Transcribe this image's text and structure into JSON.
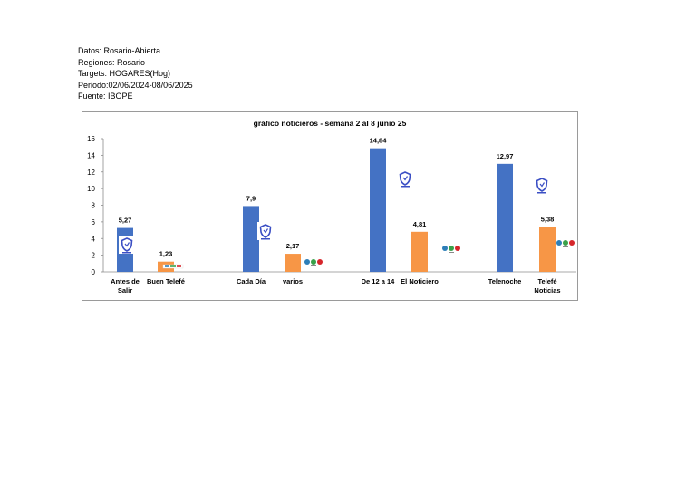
{
  "header": {
    "lines": [
      "Datos: Rosario-Abierta",
      "Regiones: Rosario",
      "Targets: HOGARES(Hog)",
      "Periodo:02/06/2024-08/06/2025",
      "Fuente: IBOPE"
    ]
  },
  "colors": {
    "blue": "#4472C4",
    "orange": "#F79646"
  },
  "chart_data": {
    "type": "bar",
    "title": "gráfico noticieros - semana 2 al 8 junio 25",
    "ylim": [
      0,
      16
    ],
    "yticks": [
      "0",
      "2",
      "4",
      "6",
      "8",
      "10",
      "12",
      "14",
      "16"
    ],
    "grid": false,
    "categories": [
      "Antes de Salir",
      "Buen Telefé",
      "Cada Día",
      "varios",
      "De 12 a 14",
      "El Noticiero",
      "Telenoche",
      "Telefé Noticias"
    ],
    "category_labels": [
      [
        "Antes de",
        "Salir"
      ],
      [
        "Buen Telefé"
      ],
      [
        "Cada Día"
      ],
      [
        "varios"
      ],
      [
        "De 12 a 14"
      ],
      [
        "El Noticiero"
      ],
      [
        "Telenoche"
      ],
      [
        "Telefé",
        "Noticias"
      ]
    ],
    "values": [
      5.27,
      1.23,
      7.9,
      2.17,
      14.84,
      4.81,
      12.97,
      5.38
    ],
    "value_labels": [
      "5,27",
      "1,23",
      "7,9",
      "2,17",
      "14,84",
      "4,81",
      "12,97",
      "5,38"
    ],
    "bar_colors": [
      "blue",
      "orange",
      "blue",
      "orange",
      "blue",
      "orange",
      "blue",
      "orange"
    ],
    "logos": [
      "shield-logo",
      "tv-logo",
      "shield-logo",
      "dots-logo",
      "shield-logo",
      "dots-logo",
      "shield-logo",
      "dots-logo"
    ]
  }
}
